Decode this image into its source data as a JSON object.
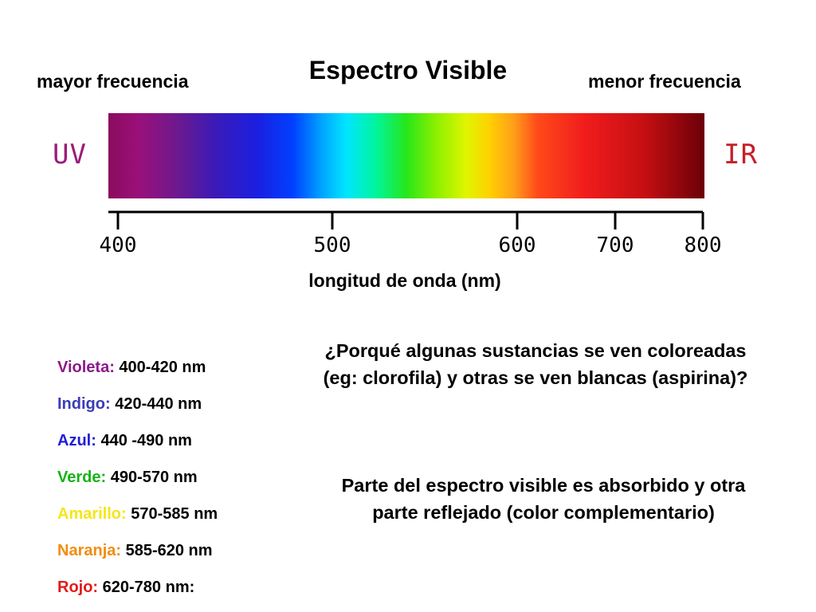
{
  "title": "Espectro Visible",
  "left_label": "mayor frecuencia",
  "right_label": "menor frecuencia",
  "uv_label": "UV",
  "ir_label": "IR",
  "axis": {
    "title": "longitud de onda (nm)",
    "ticks": [
      "400",
      "500",
      "600",
      "700",
      "800"
    ]
  },
  "ranges": [
    {
      "name": "Violeta:",
      "range": "400-420 nm",
      "color": "#8b1a89"
    },
    {
      "name": "Indigo:",
      "range": "420-440 nm",
      "color": "#3b3bb8"
    },
    {
      "name": "Azul:",
      "range": "440 -490 nm",
      "color": "#1f1fd6"
    },
    {
      "name": "Verde:",
      "range": "490-570 nm",
      "color": "#17b317"
    },
    {
      "name": "Amarillo:",
      "range": "570-585 nm",
      "color": "#f5e61a"
    },
    {
      "name": "Naranja:",
      "range": "585-620 nm",
      "color": "#f28c0f"
    },
    {
      "name": "Rojo:",
      "range": "620-780 nm:",
      "color": "#e01b1b"
    }
  ],
  "question": "¿Porqué algunas sustancias se ven coloreadas (eg: clorofila) y otras se ven blancas (aspirina)?",
  "answer": "Parte del espectro visible es absorbido y otra parte reflejado (color complementario)"
}
